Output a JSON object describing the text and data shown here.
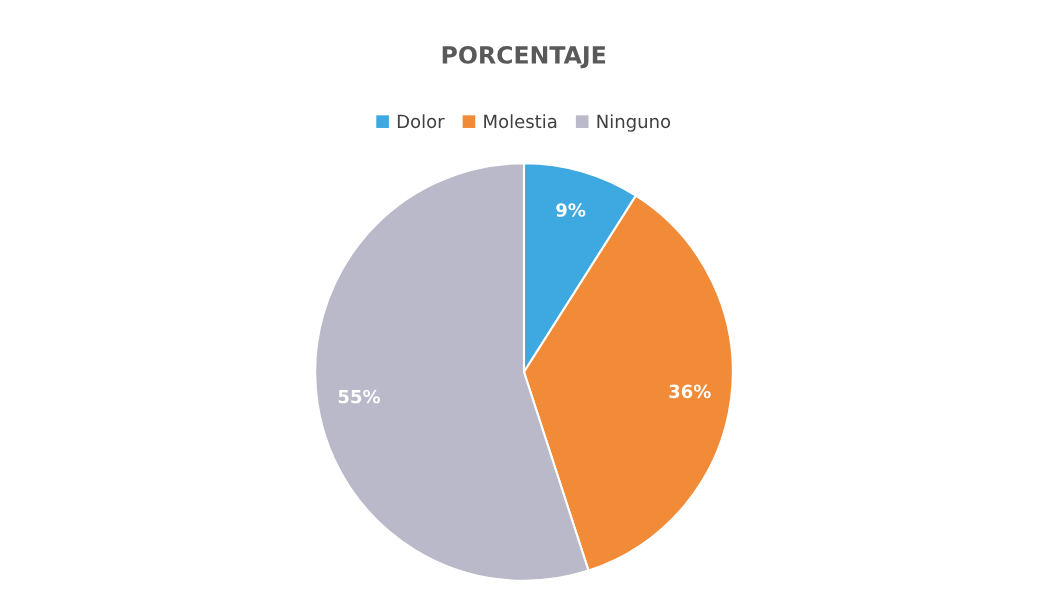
{
  "chart_data": {
    "type": "pie",
    "title": "PORCENTAJE",
    "categories": [
      "Dolor",
      "Molestia",
      "Ninguno"
    ],
    "values": [
      9,
      36,
      55
    ],
    "colors": [
      "#3ea8e0",
      "#f28b38",
      "#b9b9c9"
    ],
    "value_labels": [
      "9%",
      "36%",
      "55%"
    ],
    "legend": "top"
  }
}
